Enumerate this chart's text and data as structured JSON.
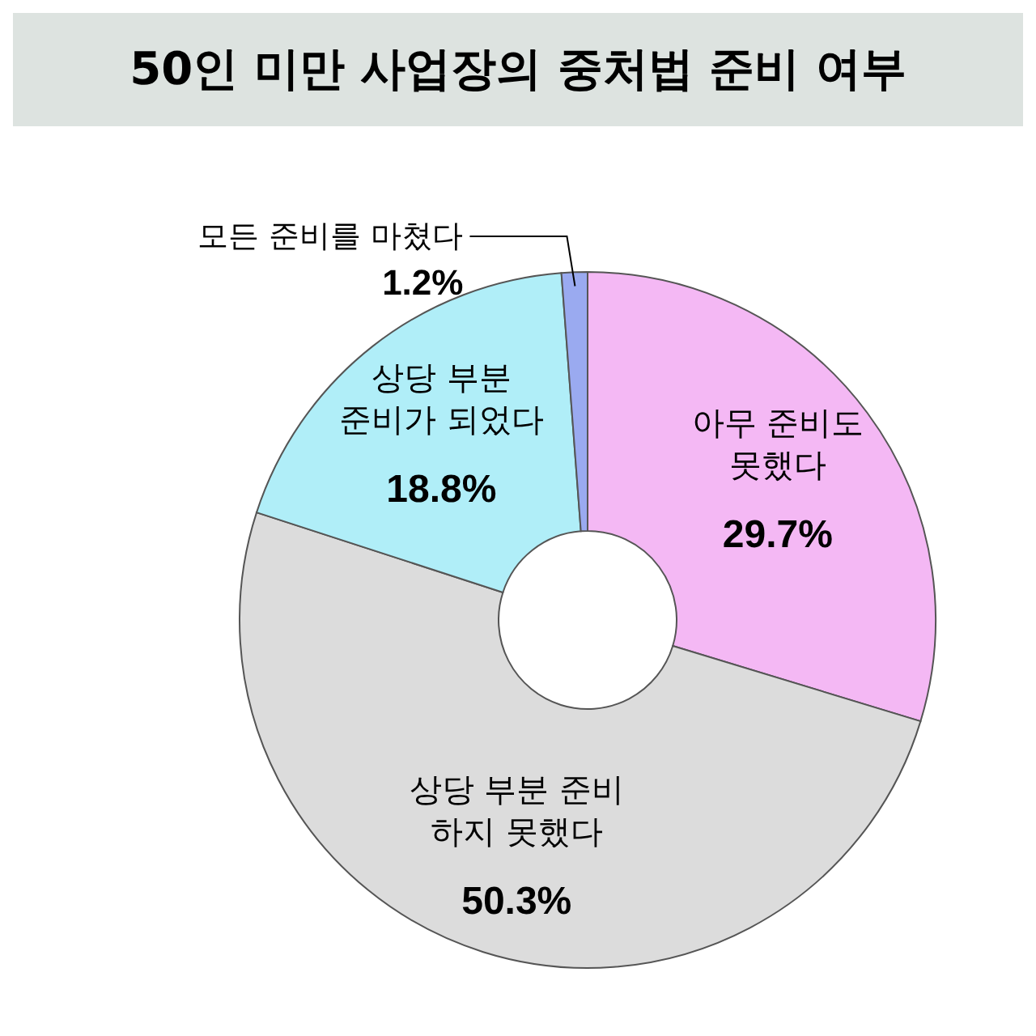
{
  "chart_data": {
    "type": "donut",
    "title": "50인 미만 사업장의 중처법 준비 여부",
    "categories": [
      "아무 준비도\n못했다",
      "상당 부분 준비\n하지 못했다",
      "상당 부분\n준비가 되었다",
      "모든 준비를 마쳤다"
    ],
    "values": [
      29.7,
      50.3,
      18.8,
      1.2
    ],
    "colors": [
      "#f4b8f4",
      "#dcdcdc",
      "#b0eef8",
      "#9aaaf0"
    ],
    "value_labels": [
      "29.7%",
      "50.3%",
      "18.8%",
      "1.2%"
    ]
  }
}
